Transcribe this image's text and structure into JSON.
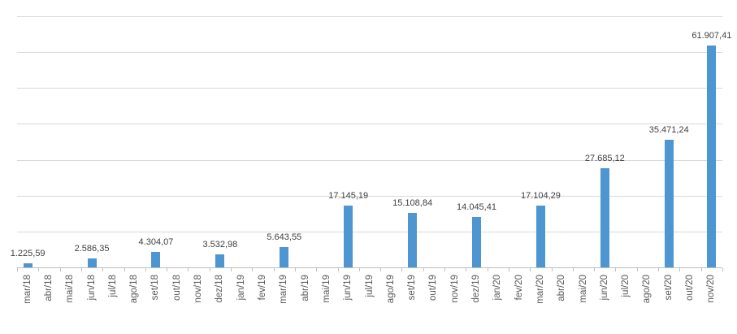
{
  "chart_data": {
    "type": "bar",
    "title": "",
    "xlabel": "",
    "ylabel": "",
    "categories": [
      "mar/18",
      "abr/18",
      "mai/18",
      "jun/18",
      "jul/18",
      "ago/18",
      "set/18",
      "out/18",
      "nov/18",
      "dez/18",
      "jan/19",
      "fev/19",
      "mar/19",
      "abr/19",
      "mai/19",
      "jun/19",
      "jul/19",
      "ago/19",
      "set/19",
      "out/19",
      "nov/19",
      "dez/19",
      "jan/20",
      "fev/20",
      "mar/20",
      "abr/20",
      "mai/20",
      "jun/20",
      "jul/20",
      "ago/20",
      "set/20",
      "out/20",
      "nov/20"
    ],
    "values": [
      1225.59,
      null,
      null,
      2586.35,
      null,
      null,
      4304.07,
      null,
      null,
      3532.98,
      null,
      null,
      5643.55,
      null,
      null,
      17145.19,
      null,
      null,
      15108.84,
      null,
      null,
      14045.41,
      null,
      null,
      17104.29,
      null,
      null,
      27685.12,
      null,
      null,
      35471.24,
      null,
      61907.41
    ],
    "value_labels": [
      "1.225,59",
      null,
      null,
      "2.586,35",
      null,
      null,
      "4.304,07",
      null,
      null,
      "3.532,98",
      null,
      null,
      "5.643,55",
      null,
      null,
      "17.145,19",
      null,
      null,
      "15.108,84",
      null,
      null,
      "14.045,41",
      null,
      null,
      "17.104,29",
      null,
      null,
      "27.685,12",
      null,
      null,
      "35.471,24",
      null,
      "61.907,41"
    ],
    "ylim": [
      0,
      70000
    ],
    "grid_interval": 10000,
    "grid": true,
    "legend": false,
    "bar_color": "#4D96D2",
    "gridline_color": "#D9D9D9",
    "axis_color": "#BFBFBF",
    "axis_label_color": "#595959",
    "data_label_color": "#404040"
  }
}
